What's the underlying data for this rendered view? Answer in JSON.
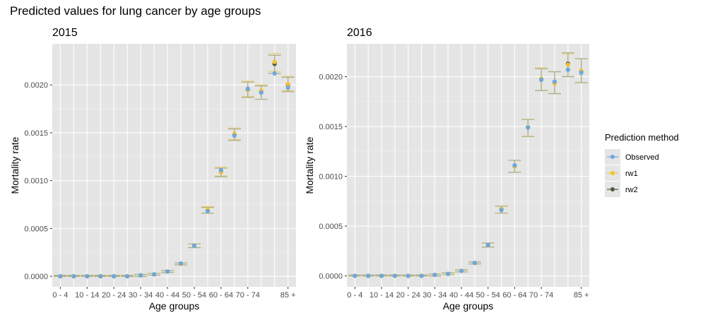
{
  "title": "Predicted values for lung cancer by age groups",
  "legend": {
    "title": "Prediction method",
    "placement": "right",
    "items": [
      {
        "name": "Observed",
        "color": "#6fa8dc"
      },
      {
        "name": "rw1",
        "color": "#f1c232"
      },
      {
        "name": "rw2",
        "color": "#4a5a3a"
      }
    ]
  },
  "chart_data": [
    {
      "type": "scatter",
      "title": "2015",
      "xlabel": "Age groups",
      "ylabel": "Mortality rate",
      "x_tick_labels": [
        "0 - 4",
        "10 - 14",
        "20 - 24",
        "30 - 34",
        "40 - 44",
        "50 - 54",
        "60 - 64",
        "70 - 74",
        "85 +"
      ],
      "x_tick_positions": [
        1,
        3,
        5,
        7,
        9,
        11,
        13,
        15,
        18
      ],
      "y_ticks": [
        "0.0000",
        "0.0005",
        "0.0010",
        "0.0015",
        "0.0020"
      ],
      "y_tick_values": [
        0,
        0.0005,
        0.001,
        0.0015,
        0.002
      ],
      "xlim": [
        0.4,
        18.6
      ],
      "ylim": [
        -0.00011,
        0.00243
      ],
      "grid": true,
      "series": [
        {
          "name": "Observed",
          "x": [
            1,
            2,
            3,
            4,
            5,
            6,
            7,
            8,
            9,
            10,
            11,
            12,
            13,
            14,
            15,
            16,
            17,
            18
          ],
          "values": [
            0.0,
            0.0,
            0.0,
            0.0,
            0.0,
            0.0,
            1e-05,
            2e-05,
            5e-05,
            0.000135,
            0.00032,
            0.00068,
            0.00111,
            0.00147,
            0.00196,
            0.00192,
            0.00212,
            0.00197
          ]
        },
        {
          "name": "rw1",
          "x": [
            1,
            2,
            3,
            4,
            5,
            6,
            7,
            8,
            9,
            10,
            11,
            12,
            13,
            14,
            15,
            16,
            17,
            18
          ],
          "values": [
            0.0,
            0.0,
            0.0,
            0.0,
            0.0,
            0.0,
            1e-05,
            2e-05,
            5e-05,
            0.00013,
            0.00032,
            0.0007,
            0.00109,
            0.00149,
            0.00195,
            0.00194,
            0.00224,
            0.00201
          ],
          "lower": [
            0.0,
            0.0,
            0.0,
            0.0,
            0.0,
            0.0,
            0.0,
            1e-05,
            4e-05,
            0.00012,
            0.0003,
            0.00066,
            0.00105,
            0.00143,
            0.00188,
            0.00185,
            0.00214,
            0.00194
          ],
          "upper": [
            1e-05,
            1e-05,
            1e-05,
            1e-05,
            1e-05,
            1e-05,
            2e-05,
            3e-05,
            6e-05,
            0.00014,
            0.00034,
            0.00073,
            0.00114,
            0.00155,
            0.00204,
            0.002,
            0.00233,
            0.00209
          ]
        },
        {
          "name": "rw2",
          "x": [
            1,
            2,
            3,
            4,
            5,
            6,
            7,
            8,
            9,
            10,
            11,
            12,
            13,
            14,
            15,
            16,
            17,
            18
          ],
          "values": [
            0.0,
            0.0,
            0.0,
            0.0,
            0.0,
            0.0,
            1e-05,
            2e-05,
            5e-05,
            0.00013,
            0.00032,
            0.00069,
            0.00109,
            0.00148,
            0.00195,
            0.00193,
            0.00222,
            0.002
          ],
          "lower": [
            0.0,
            0.0,
            0.0,
            0.0,
            0.0,
            0.0,
            0.0,
            1e-05,
            4e-05,
            0.00012,
            0.0003,
            0.00066,
            0.00104,
            0.00142,
            0.00187,
            0.00185,
            0.00212,
            0.00193
          ],
          "upper": [
            1e-05,
            1e-05,
            1e-05,
            1e-05,
            1e-05,
            1e-05,
            2e-05,
            3e-05,
            6e-05,
            0.00014,
            0.00034,
            0.00072,
            0.00113,
            0.00154,
            0.00203,
            0.00199,
            0.00231,
            0.00208
          ]
        }
      ]
    },
    {
      "type": "scatter",
      "title": "2016",
      "xlabel": "Age groups",
      "ylabel": "Mortality rate",
      "x_tick_labels": [
        "0 - 4",
        "10 - 14",
        "20 - 24",
        "30 - 34",
        "40 - 44",
        "50 - 54",
        "60 - 64",
        "70 - 74",
        "85 +"
      ],
      "x_tick_positions": [
        1,
        3,
        5,
        7,
        9,
        11,
        13,
        15,
        18
      ],
      "y_ticks": [
        "0.0000",
        "0.0005",
        "0.0010",
        "0.0015",
        "0.0020"
      ],
      "y_tick_values": [
        0,
        0.0005,
        0.001,
        0.0015,
        0.002
      ],
      "xlim": [
        0.4,
        18.6
      ],
      "ylim": [
        -0.00011,
        0.00233
      ],
      "grid": true,
      "series": [
        {
          "name": "Observed",
          "x": [
            1,
            2,
            3,
            4,
            5,
            6,
            7,
            8,
            9,
            10,
            11,
            12,
            13,
            14,
            15,
            16,
            17,
            18
          ],
          "values": [
            0.0,
            0.0,
            0.0,
            0.0,
            0.0,
            0.0,
            1e-05,
            2e-05,
            5e-05,
            0.00013,
            0.00031,
            0.00066,
            0.00111,
            0.00149,
            0.00197,
            0.00195,
            0.00207,
            0.00204
          ]
        },
        {
          "name": "rw1",
          "x": [
            1,
            2,
            3,
            4,
            5,
            6,
            7,
            8,
            9,
            10,
            11,
            12,
            13,
            14,
            15,
            16,
            17,
            18
          ],
          "values": [
            0.0,
            0.0,
            0.0,
            0.0,
            0.0,
            0.0,
            1e-05,
            2e-05,
            5e-05,
            0.00013,
            0.00031,
            0.00067,
            0.0011,
            0.00149,
            0.00198,
            0.00193,
            0.00212,
            0.00206
          ],
          "lower": [
            0.0,
            0.0,
            0.0,
            0.0,
            0.0,
            0.0,
            0.0,
            1e-05,
            4e-05,
            0.00012,
            0.00029,
            0.00063,
            0.00104,
            0.0014,
            0.00186,
            0.00183,
            0.002,
            0.00194
          ],
          "upper": [
            1e-05,
            1e-05,
            1e-05,
            1e-05,
            1e-05,
            1e-05,
            2e-05,
            3e-05,
            6e-05,
            0.00014,
            0.00033,
            0.0007,
            0.00116,
            0.00157,
            0.00209,
            0.00205,
            0.00223,
            0.00218
          ]
        },
        {
          "name": "rw2",
          "x": [
            1,
            2,
            3,
            4,
            5,
            6,
            7,
            8,
            9,
            10,
            11,
            12,
            13,
            14,
            15,
            16,
            17,
            18
          ],
          "values": [
            0.0,
            0.0,
            0.0,
            0.0,
            0.0,
            0.0,
            1e-05,
            2e-05,
            5e-05,
            0.00013,
            0.00031,
            0.00067,
            0.0011,
            0.00149,
            0.00197,
            0.00194,
            0.00213,
            0.00205
          ],
          "lower": [
            0.0,
            0.0,
            0.0,
            0.0,
            0.0,
            0.0,
            0.0,
            1e-05,
            4e-05,
            0.00012,
            0.00029,
            0.00063,
            0.00104,
            0.0014,
            0.00186,
            0.00183,
            0.002,
            0.00194
          ],
          "upper": [
            1e-05,
            1e-05,
            1e-05,
            1e-05,
            1e-05,
            1e-05,
            2e-05,
            3e-05,
            6e-05,
            0.00014,
            0.00033,
            0.0007,
            0.00116,
            0.00157,
            0.00208,
            0.00205,
            0.00224,
            0.00218
          ]
        }
      ]
    }
  ]
}
